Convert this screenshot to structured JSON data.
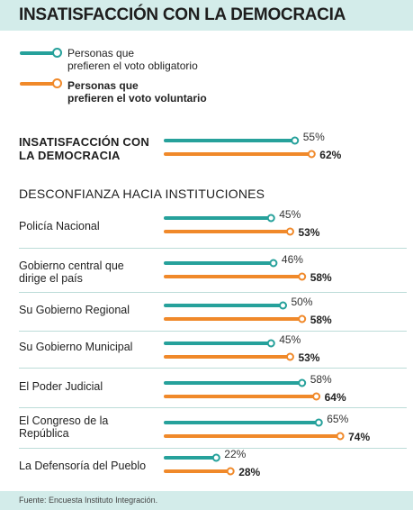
{
  "title": "INSATISFACCIÓN CON LA DEMOCRACIA",
  "colors": {
    "teal": "#26a19b",
    "orange": "#f0892a",
    "band": "#d3ecea"
  },
  "legend": [
    {
      "label_line1": "Personas que",
      "label_line2": "prefieren el voto obligatorio"
    },
    {
      "label_line1": "Personas que",
      "label_line2": "prefieren el voto voluntario"
    }
  ],
  "chart_data": {
    "type": "bar",
    "series": [
      {
        "name": "Personas que prefieren el voto obligatorio",
        "color": "#26a19b"
      },
      {
        "name": "Personas que prefieren el voto voluntario",
        "color": "#f0892a"
      }
    ],
    "main": {
      "label_line1": "INSATISFACCIÓN CON",
      "label_line2": "LA DEMOCRACIA",
      "values": [
        55,
        62
      ],
      "value_labels": [
        "55%",
        "62%"
      ]
    },
    "section_title": "DESCONFIANZA HACIA INSTITUCIONES",
    "categories": [
      {
        "label_line1": "Policía Nacional",
        "label_line2": "",
        "values": [
          45,
          53
        ],
        "value_labels": [
          "45%",
          "53%"
        ]
      },
      {
        "label_line1": "Gobierno central que",
        "label_line2": "dirige el país",
        "values": [
          46,
          58
        ],
        "value_labels": [
          "46%",
          "58%"
        ]
      },
      {
        "label_line1": "Su Gobierno Regional",
        "label_line2": "",
        "values": [
          50,
          58
        ],
        "value_labels": [
          "50%",
          "58%"
        ]
      },
      {
        "label_line1": "Su Gobierno Municipal",
        "label_line2": "",
        "values": [
          45,
          53
        ],
        "value_labels": [
          "45%",
          "53%"
        ]
      },
      {
        "label_line1": "El Poder Judicial",
        "label_line2": "",
        "values": [
          58,
          64
        ],
        "value_labels": [
          "58%",
          "64%"
        ]
      },
      {
        "label_line1": "El Congreso de la",
        "label_line2": "República",
        "values": [
          65,
          74
        ],
        "value_labels": [
          "65%",
          "74%"
        ]
      },
      {
        "label_line1": "La Defensoría del Pueblo",
        "label_line2": "",
        "values": [
          22,
          28
        ],
        "value_labels": [
          "22%",
          "28%"
        ]
      }
    ]
  },
  "footer": "Fuente: Encuesta Instituto Integración."
}
